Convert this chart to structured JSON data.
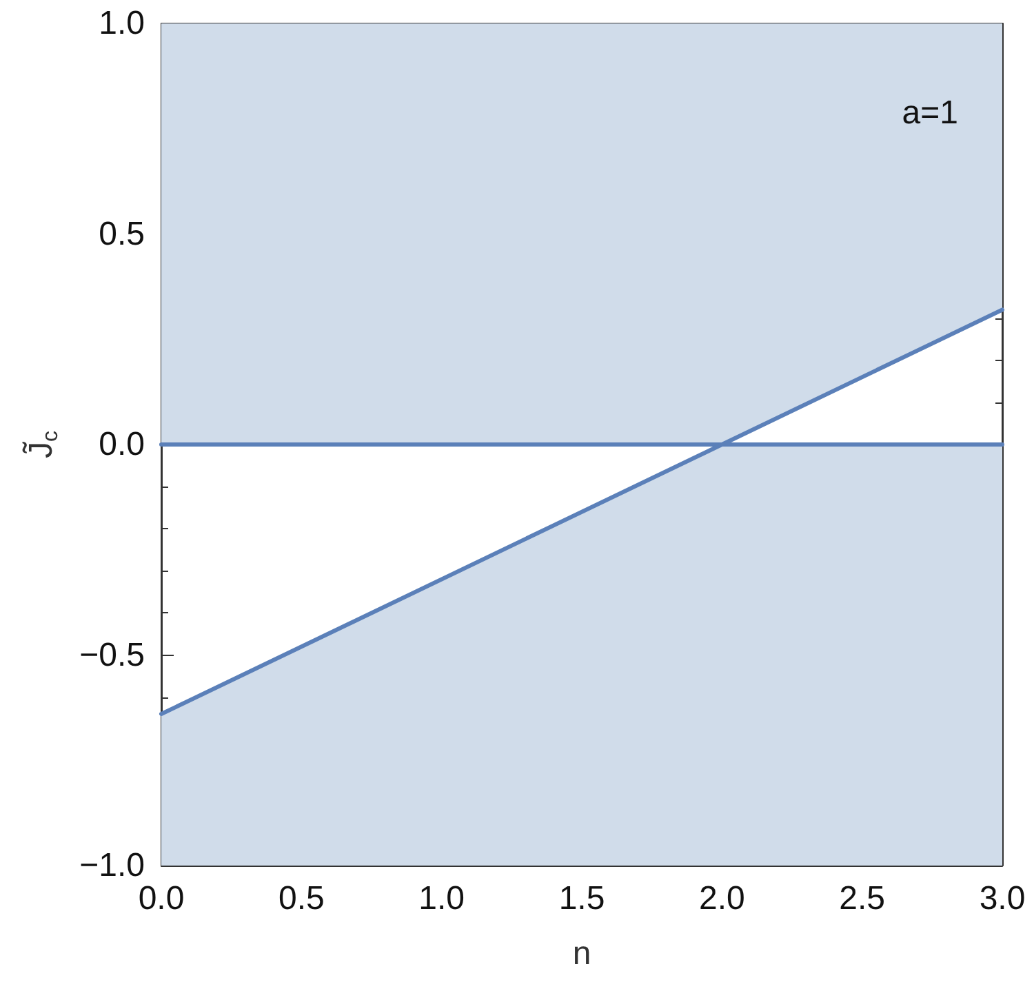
{
  "chart_data": {
    "type": "line",
    "xlabel": "n",
    "ylabel": "J̃$_{c}$",
    "annotations": [
      "a=1"
    ],
    "xlim": [
      0,
      3
    ],
    "ylim": [
      -1,
      1
    ],
    "xticks": [
      {
        "value": 0,
        "label": "0.0"
      },
      {
        "value": 0.5,
        "label": "0.5"
      },
      {
        "value": 1,
        "label": "1.0"
      },
      {
        "value": 1.5,
        "label": "1.5"
      },
      {
        "value": 2,
        "label": "2.0"
      },
      {
        "value": 2.5,
        "label": "2.5"
      },
      {
        "value": 3,
        "label": "3.0"
      }
    ],
    "yticks": [
      {
        "value": -1,
        "label": "−1.0"
      },
      {
        "value": -0.5,
        "label": "−0.5"
      },
      {
        "value": 0,
        "label": "0.0"
      },
      {
        "value": 0.5,
        "label": "0.5"
      },
      {
        "value": 1,
        "label": "1.0"
      }
    ],
    "grid": false,
    "marker": "none",
    "line_style": "solid",
    "series": [
      {
        "color": "#5b80b9",
        "x": [
          0,
          2,
          3
        ],
        "values": [
          0,
          0,
          0.32
        ],
        "lower": [
          0,
          0,
          0.32
        ],
        "upper": [
          1,
          1,
          1
        ]
      },
      {
        "color": "#5b80b9",
        "x": [
          0,
          2,
          3
        ],
        "values": [
          -0.64,
          0,
          0
        ],
        "lower": [
          -1,
          -1,
          -1
        ],
        "upper": [
          -0.64,
          0,
          0
        ]
      }
    ]
  }
}
